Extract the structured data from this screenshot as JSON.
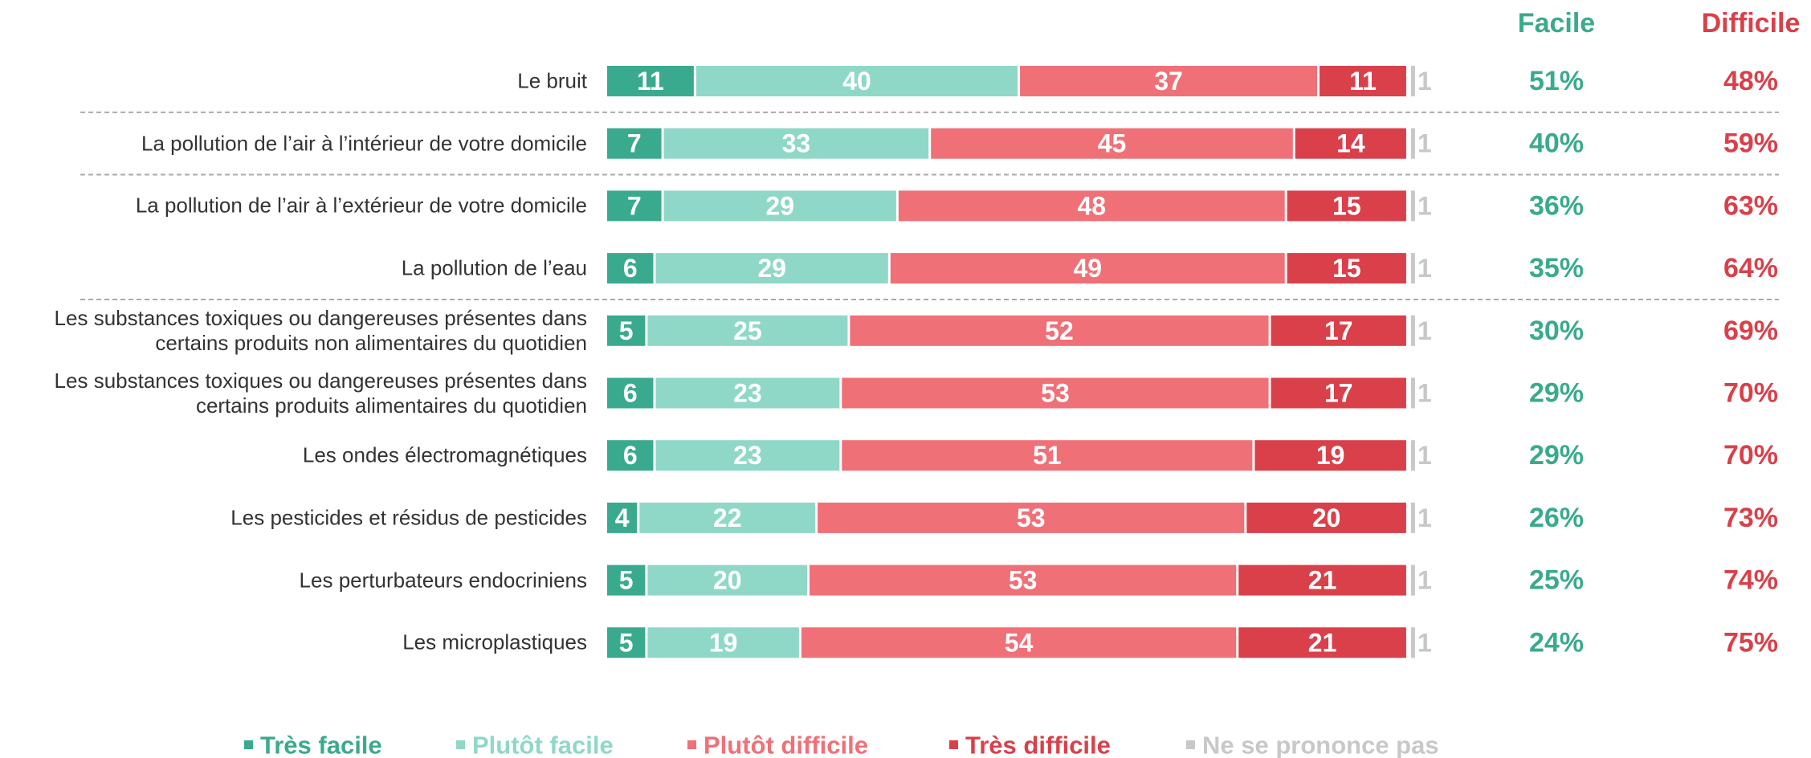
{
  "chart_data": {
    "type": "stacked-bar",
    "categories": [
      "Le bruit",
      "La pollution de l’air à l’intérieur de votre domicile",
      "La pollution de l’air à l’extérieur de votre domicile",
      "La pollution de l’eau",
      "Les substances toxiques ou dangereuses présentes dans\ncertains produits non alimentaires du quotidien",
      "Les substances toxiques ou dangereuses présentes dans\ncertains produits alimentaires du quotidien",
      "Les ondes électromagnétiques",
      "Les pesticides et résidus de pesticides",
      "Les perturbateurs endocriniens",
      "Les microplastiques"
    ],
    "series": [
      {
        "name": "Très facile",
        "color": "#3aaa8e",
        "values": [
          11,
          7,
          7,
          6,
          5,
          6,
          6,
          4,
          5,
          5
        ]
      },
      {
        "name": "Plutôt facile",
        "color": "#8fd8c8",
        "values": [
          40,
          33,
          29,
          29,
          25,
          23,
          23,
          22,
          20,
          19
        ]
      },
      {
        "name": "Plutôt difficile",
        "color": "#f07077",
        "values": [
          37,
          45,
          48,
          49,
          52,
          53,
          51,
          53,
          53,
          54
        ]
      },
      {
        "name": "Très difficile",
        "color": "#d9404a",
        "values": [
          11,
          14,
          15,
          15,
          17,
          17,
          19,
          20,
          21,
          21
        ]
      },
      {
        "name": "Ne se prononce pas",
        "color": "#c8c8c8",
        "values": [
          1,
          1,
          1,
          1,
          1,
          1,
          1,
          1,
          1,
          1
        ]
      }
    ],
    "summary": [
      {
        "name": "Facile",
        "color": "#3aaa8e",
        "values": [
          51,
          40,
          36,
          35,
          30,
          29,
          29,
          26,
          25,
          24
        ],
        "value_labels": [
          "51%",
          "40%",
          "36%",
          "35%",
          "30%",
          "29%",
          "29%",
          "26%",
          "25%",
          "24%"
        ]
      },
      {
        "name": "Difficile",
        "color": "#d9404a",
        "values": [
          48,
          59,
          63,
          64,
          69,
          70,
          70,
          73,
          74,
          75
        ],
        "value_labels": [
          "48%",
          "59%",
          "63%",
          "64%",
          "69%",
          "70%",
          "70%",
          "73%",
          "74%",
          "75%"
        ]
      }
    ]
  }
}
